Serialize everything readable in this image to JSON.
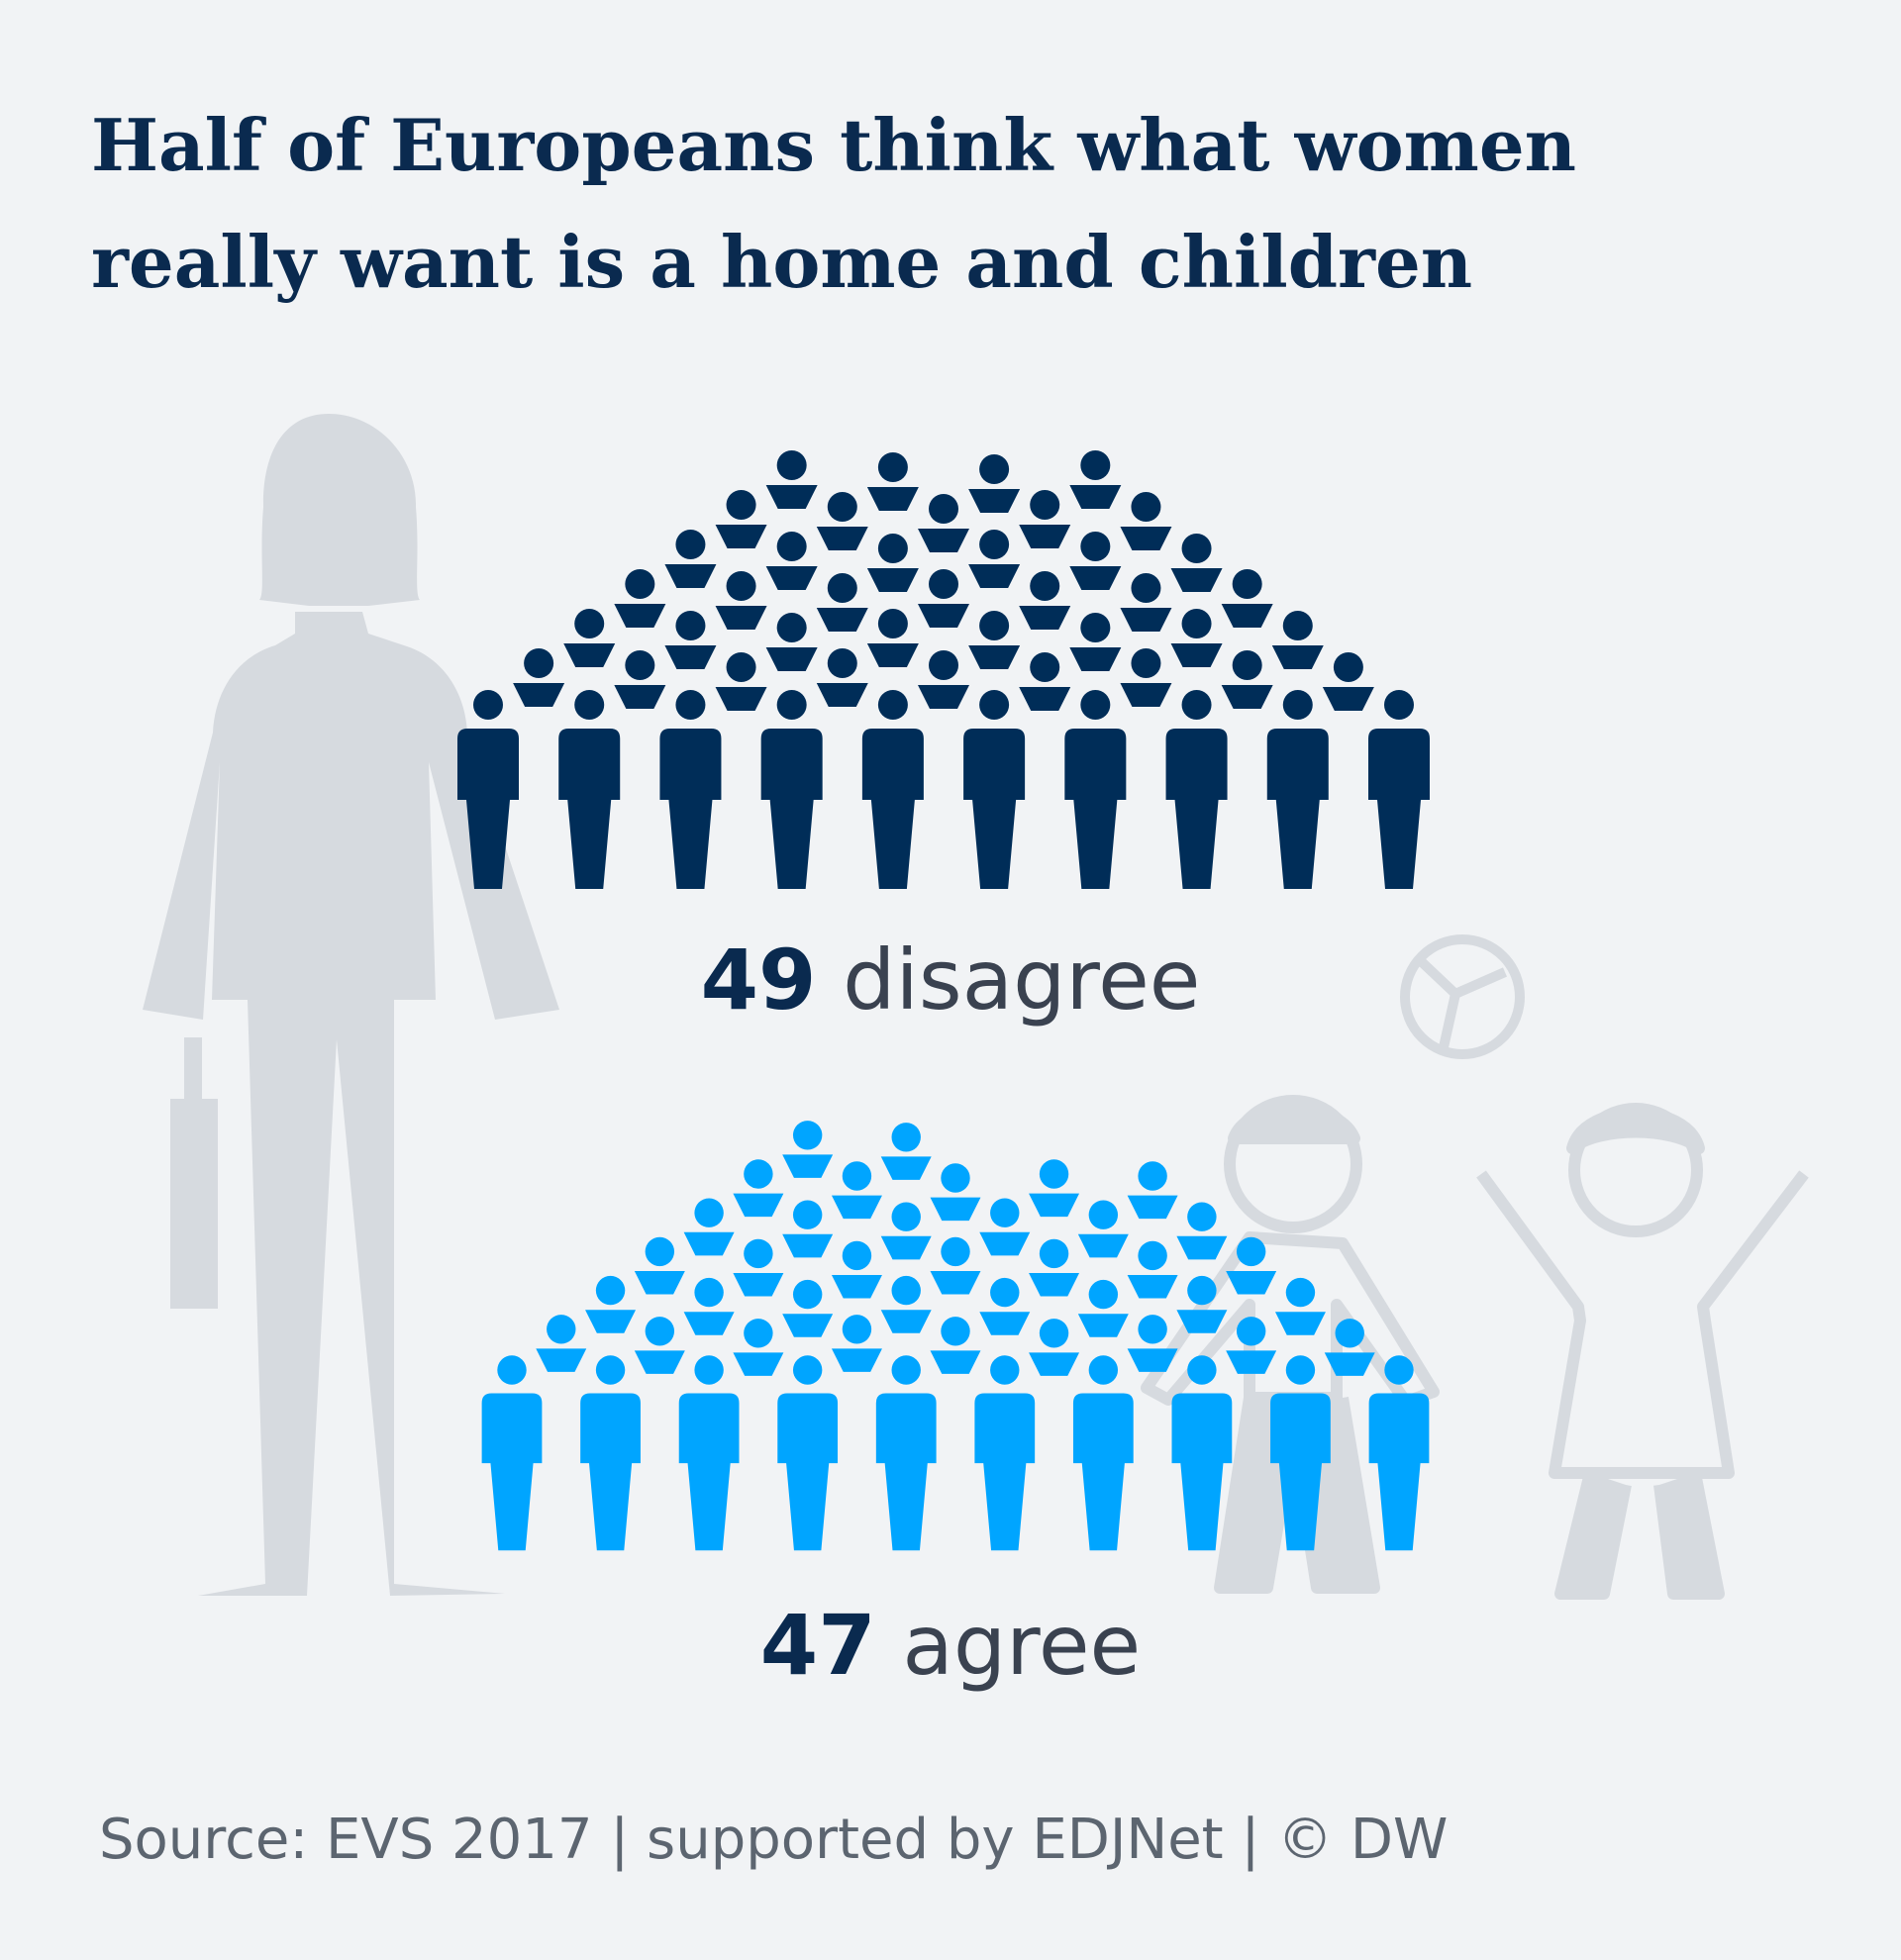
{
  "chart_data": {
    "type": "pictogram",
    "title_lines": [
      "Half of Europeans think what women",
      "really want is a home and children"
    ],
    "series": [
      {
        "name": "disagree",
        "value": 49,
        "color": "#002d58"
      },
      {
        "name": "agree",
        "value": 47,
        "color": "#00a5ff"
      }
    ],
    "source": "Source: EVS 2017 | supported by EDJNet | © DW"
  },
  "colors": {
    "background": "#f1f3f5",
    "silhouette": "#d6dadf",
    "title": "#0a2a4f",
    "label_text": "#3a4250"
  },
  "icons": [
    "woman-silhouette-icon",
    "boy-silhouette-icon",
    "girl-silhouette-icon",
    "ball-icon",
    "person-icon"
  ]
}
